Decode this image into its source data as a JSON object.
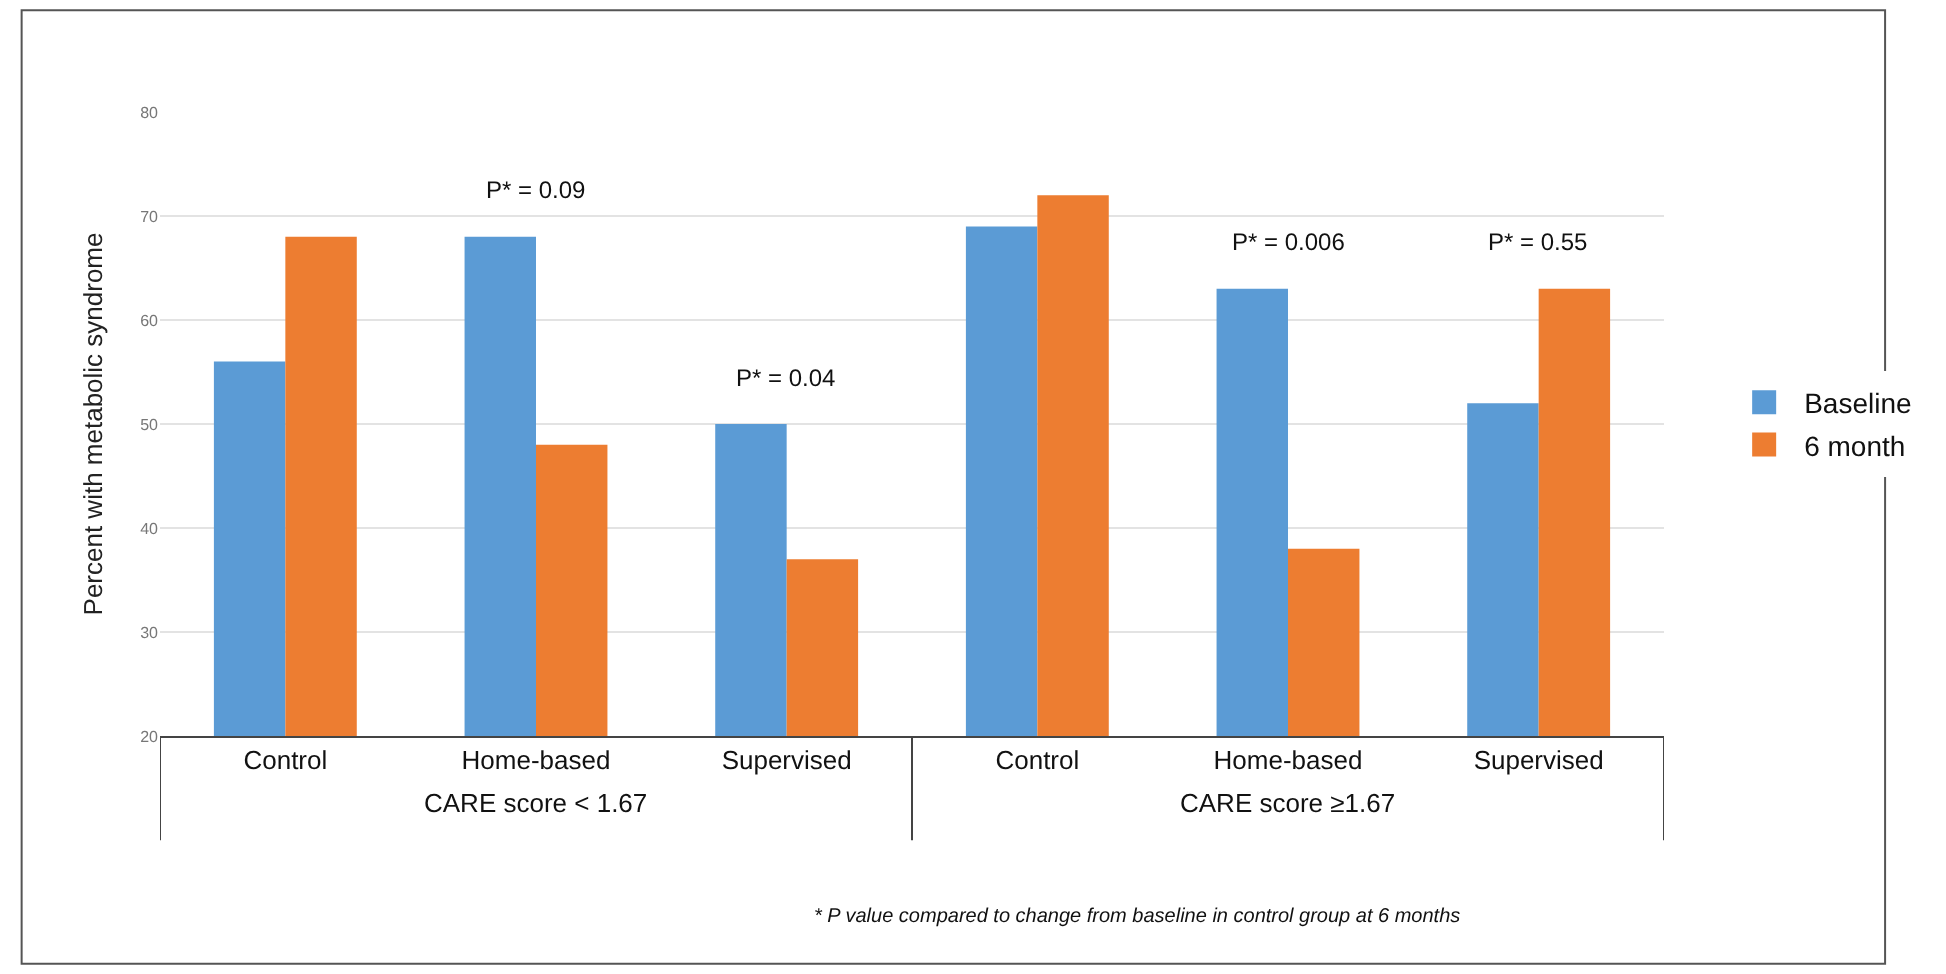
{
  "chart_data": {
    "type": "bar",
    "ylabel": "Percent with metabolic syndrome",
    "categories": [
      "Control",
      "Home-based",
      "Supervised",
      "Control",
      "Home-based",
      "Supervised"
    ],
    "series": [
      {
        "name": "Baseline",
        "color": "#5b9bd5",
        "values": [
          56,
          68,
          50,
          69,
          63,
          52
        ]
      },
      {
        "name": "6 month",
        "color": "#ed7d31",
        "values": [
          68,
          48,
          37,
          72,
          38,
          63
        ]
      }
    ],
    "ylim": [
      20,
      80
    ],
    "yticks": [
      20,
      30,
      40,
      50,
      60,
      70,
      80
    ],
    "grid": "y",
    "legend": "right",
    "annotations": [
      "P* = 0.09",
      "P* = 0.04",
      "P* = 0.006",
      "P* = 0.55",
      "CARE score < 1.67",
      "CARE score ≥1.67",
      "* P value compared to change from baseline in control group at 6 months"
    ]
  }
}
